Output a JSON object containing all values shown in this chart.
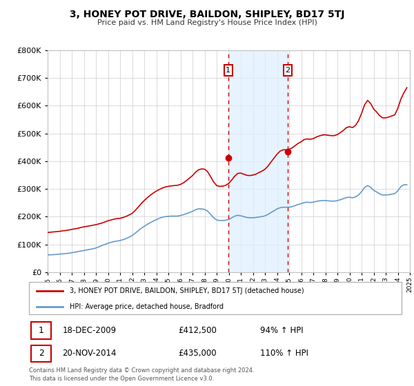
{
  "title": "3, HONEY POT DRIVE, BAILDON, SHIPLEY, BD17 5TJ",
  "subtitle": "Price paid vs. HM Land Registry's House Price Index (HPI)",
  "legend_label_red": "3, HONEY POT DRIVE, BAILDON, SHIPLEY, BD17 5TJ (detached house)",
  "legend_label_blue": "HPI: Average price, detached house, Bradford",
  "transaction1_date": "18-DEC-2009",
  "transaction1_price": 412500,
  "transaction1_hpi": "94% ↑ HPI",
  "transaction1_label": "1",
  "transaction1_x": 2009.96,
  "transaction2_date": "20-NOV-2014",
  "transaction2_price": 435000,
  "transaction2_hpi": "110% ↑ HPI",
  "transaction2_label": "2",
  "transaction2_x": 2014.88,
  "footer": "Contains HM Land Registry data © Crown copyright and database right 2024.\nThis data is licensed under the Open Government Licence v3.0.",
  "color_red": "#cc0000",
  "color_blue": "#6699cc",
  "color_shading": "#ddeeff",
  "ylim": [
    0,
    800000
  ],
  "xlim_start": 1995,
  "xlim_end": 2025,
  "background_color": "#ffffff",
  "grid_color": "#cccccc",
  "hpi_data_x": [
    1995.0,
    1995.25,
    1995.5,
    1995.75,
    1996.0,
    1996.25,
    1996.5,
    1996.75,
    1997.0,
    1997.25,
    1997.5,
    1997.75,
    1998.0,
    1998.25,
    1998.5,
    1998.75,
    1999.0,
    1999.25,
    1999.5,
    1999.75,
    2000.0,
    2000.25,
    2000.5,
    2000.75,
    2001.0,
    2001.25,
    2001.5,
    2001.75,
    2002.0,
    2002.25,
    2002.5,
    2002.75,
    2003.0,
    2003.25,
    2003.5,
    2003.75,
    2004.0,
    2004.25,
    2004.5,
    2004.75,
    2005.0,
    2005.25,
    2005.5,
    2005.75,
    2006.0,
    2006.25,
    2006.5,
    2006.75,
    2007.0,
    2007.25,
    2007.5,
    2007.75,
    2008.0,
    2008.25,
    2008.5,
    2008.75,
    2009.0,
    2009.25,
    2009.5,
    2009.75,
    2010.0,
    2010.25,
    2010.5,
    2010.75,
    2011.0,
    2011.25,
    2011.5,
    2011.75,
    2012.0,
    2012.25,
    2012.5,
    2012.75,
    2013.0,
    2013.25,
    2013.5,
    2013.75,
    2014.0,
    2014.25,
    2014.5,
    2014.75,
    2015.0,
    2015.25,
    2015.5,
    2015.75,
    2016.0,
    2016.25,
    2016.5,
    2016.75,
    2017.0,
    2017.25,
    2017.5,
    2017.75,
    2018.0,
    2018.25,
    2018.5,
    2018.75,
    2019.0,
    2019.25,
    2019.5,
    2019.75,
    2020.0,
    2020.25,
    2020.5,
    2020.75,
    2021.0,
    2021.25,
    2021.5,
    2021.75,
    2022.0,
    2022.25,
    2022.5,
    2022.75,
    2023.0,
    2023.25,
    2023.5,
    2023.75,
    2024.0,
    2024.25,
    2024.5,
    2024.75
  ],
  "hpi_data_y": [
    62000,
    62500,
    63000,
    64000,
    65000,
    66000,
    67000,
    68000,
    70000,
    72000,
    74000,
    76000,
    78000,
    80000,
    82000,
    84000,
    87000,
    91000,
    96000,
    100000,
    104000,
    107000,
    110000,
    112000,
    114000,
    117000,
    121000,
    126000,
    132000,
    140000,
    149000,
    158000,
    165000,
    172000,
    178000,
    184000,
    189000,
    194000,
    198000,
    200000,
    201000,
    202000,
    202000,
    202000,
    204000,
    207000,
    211000,
    215000,
    219000,
    225000,
    228000,
    228000,
    226000,
    220000,
    208000,
    196000,
    188000,
    186000,
    186000,
    187000,
    190000,
    196000,
    202000,
    205000,
    203000,
    200000,
    197000,
    196000,
    196000,
    197000,
    199000,
    200000,
    203000,
    208000,
    215000,
    221000,
    228000,
    232000,
    234000,
    234000,
    234000,
    236000,
    240000,
    244000,
    247000,
    251000,
    252000,
    251000,
    252000,
    255000,
    257000,
    258000,
    258000,
    257000,
    256000,
    256000,
    258000,
    261000,
    265000,
    269000,
    270000,
    268000,
    271000,
    278000,
    290000,
    305000,
    312000,
    306000,
    295000,
    289000,
    282000,
    278000,
    278000,
    279000,
    281000,
    283000,
    293000,
    308000,
    315000,
    315000
  ],
  "property_data_x": [
    1995.0,
    1995.25,
    1995.5,
    1995.75,
    1996.0,
    1996.25,
    1996.5,
    1996.75,
    1997.0,
    1997.25,
    1997.5,
    1997.75,
    1998.0,
    1998.25,
    1998.5,
    1998.75,
    1999.0,
    1999.25,
    1999.5,
    1999.75,
    2000.0,
    2000.25,
    2000.5,
    2000.75,
    2001.0,
    2001.25,
    2001.5,
    2001.75,
    2002.0,
    2002.25,
    2002.5,
    2002.75,
    2003.0,
    2003.25,
    2003.5,
    2003.75,
    2004.0,
    2004.25,
    2004.5,
    2004.75,
    2005.0,
    2005.25,
    2005.5,
    2005.75,
    2006.0,
    2006.25,
    2006.5,
    2006.75,
    2007.0,
    2007.25,
    2007.5,
    2007.75,
    2008.0,
    2008.25,
    2008.5,
    2008.75,
    2009.0,
    2009.25,
    2009.5,
    2009.75,
    2010.0,
    2010.25,
    2010.5,
    2010.75,
    2011.0,
    2011.25,
    2011.5,
    2011.75,
    2012.0,
    2012.25,
    2012.5,
    2012.75,
    2013.0,
    2013.25,
    2013.5,
    2013.75,
    2014.0,
    2014.25,
    2014.5,
    2014.75,
    2015.0,
    2015.25,
    2015.5,
    2015.75,
    2016.0,
    2016.25,
    2016.5,
    2016.75,
    2017.0,
    2017.25,
    2017.5,
    2017.75,
    2018.0,
    2018.25,
    2018.5,
    2018.75,
    2019.0,
    2019.25,
    2019.5,
    2019.75,
    2020.0,
    2020.25,
    2020.5,
    2020.75,
    2021.0,
    2021.25,
    2021.5,
    2021.75,
    2022.0,
    2022.25,
    2022.5,
    2022.75,
    2023.0,
    2023.25,
    2023.5,
    2023.75,
    2024.0,
    2024.25,
    2024.5,
    2024.75
  ],
  "property_data_y": [
    143000,
    144000,
    145000,
    146000,
    147000,
    149000,
    150000,
    152000,
    154000,
    156000,
    158000,
    161000,
    163000,
    165000,
    167000,
    169000,
    171000,
    174000,
    177000,
    181000,
    185000,
    188000,
    191000,
    193000,
    194000,
    197000,
    201000,
    206000,
    212000,
    222000,
    234000,
    247000,
    258000,
    268000,
    277000,
    285000,
    292000,
    298000,
    303000,
    307000,
    309000,
    311000,
    312000,
    313000,
    316000,
    322000,
    330000,
    339000,
    348000,
    360000,
    369000,
    372000,
    371000,
    362000,
    344000,
    325000,
    312000,
    309000,
    310000,
    313000,
    320000,
    332000,
    346000,
    356000,
    357000,
    353000,
    349000,
    348000,
    350000,
    353000,
    359000,
    364000,
    371000,
    382000,
    397000,
    411000,
    425000,
    436000,
    441000,
    441000,
    443000,
    448000,
    456000,
    464000,
    470000,
    478000,
    480000,
    479000,
    481000,
    487000,
    491000,
    494000,
    495000,
    493000,
    492000,
    492000,
    496000,
    503000,
    511000,
    521000,
    524000,
    521000,
    529000,
    546000,
    572000,
    603000,
    619000,
    608000,
    588000,
    577000,
    564000,
    556000,
    556000,
    559000,
    563000,
    567000,
    590000,
    623000,
    646000,
    665000
  ]
}
